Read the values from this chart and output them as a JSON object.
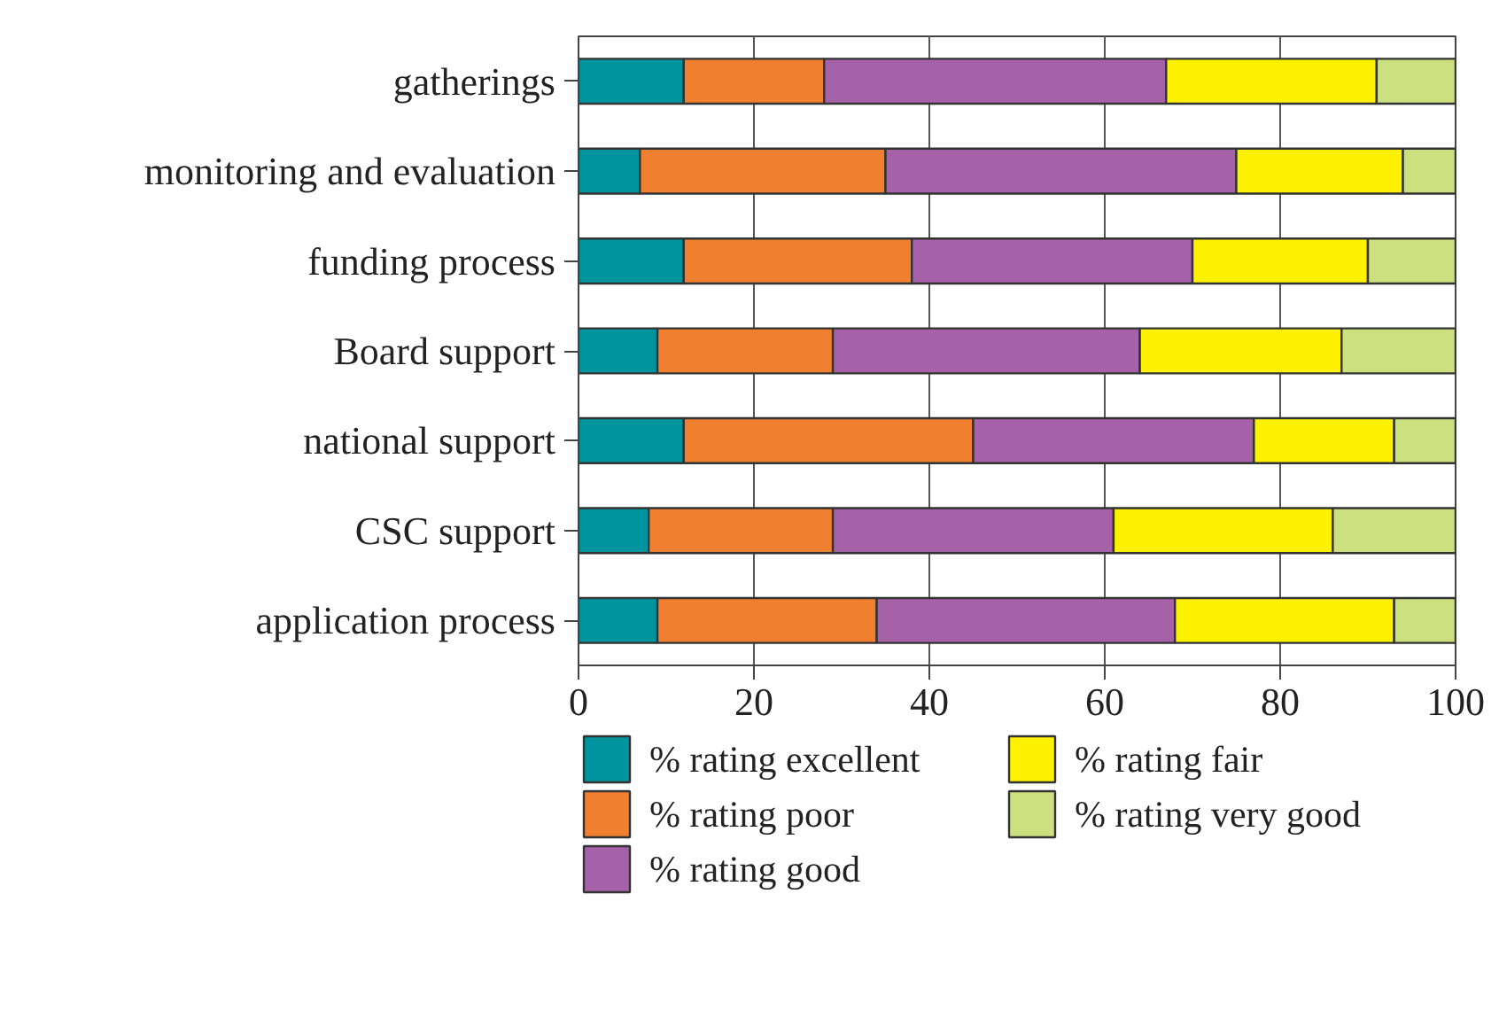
{
  "chart_data": {
    "type": "bar",
    "orientation": "horizontal",
    "stacked": true,
    "categories": [
      "gatherings",
      "monitoring and evaluation",
      "funding process",
      "Board support",
      "national support",
      "CSC support",
      "application process"
    ],
    "series": [
      {
        "name": "% rating excellent",
        "color": "#00959e",
        "values": [
          12,
          7,
          12,
          9,
          12,
          8,
          9
        ]
      },
      {
        "name": "% rating poor",
        "color": "#f08030",
        "values": [
          16,
          28,
          26,
          20,
          33,
          21,
          25
        ]
      },
      {
        "name": "% rating good",
        "color": "#a662a8",
        "values": [
          39,
          40,
          32,
          35,
          32,
          32,
          34
        ]
      },
      {
        "name": "% rating fair",
        "color": "#fff200",
        "values": [
          24,
          19,
          20,
          23,
          16,
          25,
          25
        ]
      },
      {
        "name": "% rating very good",
        "color": "#cde07f",
        "values": [
          9,
          6,
          10,
          13,
          7,
          14,
          7
        ]
      }
    ],
    "xlim": [
      0,
      100
    ],
    "xticks": [
      0,
      20,
      40,
      60,
      80,
      100
    ],
    "grid": "x",
    "legend": "bottom"
  }
}
